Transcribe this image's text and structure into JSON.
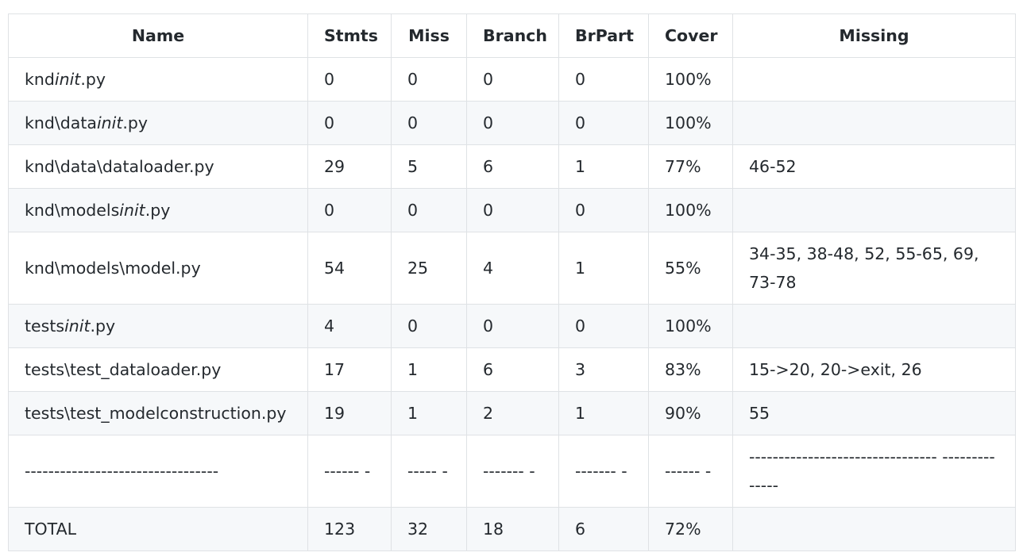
{
  "table": {
    "headers": [
      "Name",
      "Stmts",
      "Miss",
      "Branch",
      "BrPart",
      "Cover",
      "Missing"
    ],
    "rows": [
      {
        "name_prefix": "knd",
        "name_italic": "init",
        "name_suffix": ".py",
        "stmts": "0",
        "miss": "0",
        "branch": "0",
        "brpart": "0",
        "cover": "100%",
        "missing": ""
      },
      {
        "name_prefix": "knd\\data",
        "name_italic": "init",
        "name_suffix": ".py",
        "stmts": "0",
        "miss": "0",
        "branch": "0",
        "brpart": "0",
        "cover": "100%",
        "missing": ""
      },
      {
        "name": "knd\\data\\dataloader.py",
        "stmts": "29",
        "miss": "5",
        "branch": "6",
        "brpart": "1",
        "cover": "77%",
        "missing": "46-52"
      },
      {
        "name_prefix": "knd\\models",
        "name_italic": "init",
        "name_suffix": ".py",
        "stmts": "0",
        "miss": "0",
        "branch": "0",
        "brpart": "0",
        "cover": "100%",
        "missing": ""
      },
      {
        "name": "knd\\models\\model.py",
        "stmts": "54",
        "miss": "25",
        "branch": "4",
        "brpart": "1",
        "cover": "55%",
        "missing": "34-35, 38-48, 52, 55-65, 69, 73-78"
      },
      {
        "name_prefix": "tests",
        "name_italic": "init",
        "name_suffix": ".py",
        "stmts": "4",
        "miss": "0",
        "branch": "0",
        "brpart": "0",
        "cover": "100%",
        "missing": ""
      },
      {
        "name": "tests\\test_dataloader.py",
        "stmts": "17",
        "miss": "1",
        "branch": "6",
        "brpart": "3",
        "cover": "83%",
        "missing": "15->20, 20->exit, 26"
      },
      {
        "name": "tests\\test_modelconstruction.py",
        "stmts": "19",
        "miss": "1",
        "branch": "2",
        "brpart": "1",
        "cover": "90%",
        "missing": "55"
      },
      {
        "name": "---------------------------------",
        "stmts": "------ -",
        "miss": "----- -",
        "branch": "------- -",
        "brpart": "------- -",
        "cover": "------ -",
        "missing": "-------------------------------- --------------"
      },
      {
        "name": "TOTAL",
        "stmts": "123",
        "miss": "32",
        "branch": "18",
        "brpart": "6",
        "cover": "72%",
        "missing": ""
      }
    ]
  }
}
